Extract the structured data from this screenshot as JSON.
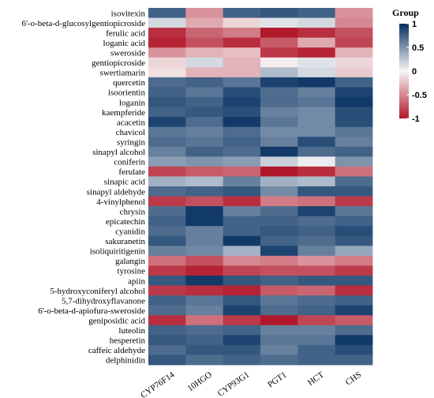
{
  "chart_data": {
    "type": "heatmap",
    "title": "",
    "xlabel": "",
    "ylabel": "",
    "legend": {
      "title": "Group",
      "placement": "top-right",
      "range": [
        -1,
        1
      ],
      "ticks": [
        {
          "value": 1,
          "label": "1"
        },
        {
          "value": 0.5,
          "label": "0.5"
        },
        {
          "value": 0,
          "label": "0"
        },
        {
          "value": -0.5,
          "label": "-0.5"
        },
        {
          "value": -1,
          "label": "-1"
        }
      ]
    },
    "colors": {
      "low": "#b2182b",
      "mid": "#f7f7f7",
      "high": "#053061"
    },
    "columns": [
      "CYP76F14",
      "10HGO",
      "CYP93G1",
      "PGT1",
      "HCT",
      "CHS"
    ],
    "rows": [
      "isovitexin",
      "6'-o-beta-d-glucosylgentiopicroside",
      "ferulic acid",
      "loganic acid",
      "sweroside",
      "gentiopicroside",
      "swertiamarin",
      "quercetin",
      "isoorientin",
      "loganin",
      "kaempferide",
      "acacetin",
      "chavicol",
      "syringin",
      "sinapyl alcohol",
      "coniferin",
      "ferulate",
      "sinapic acid",
      "sinapyl aldehyde",
      "4-vinylphenol",
      "chrysin",
      "epicatechin",
      "cyanidin",
      "sakuranetin",
      "isoliquiritigenin",
      "galangin",
      "tyrosine",
      "apiin",
      "5-hydroxyconiferyl alcohol",
      "5,7-dihydroxyflavanone",
      "6'-o-beta-d-apiofura-sweroside",
      "geniposidic acid",
      "luteolin",
      "hesperetin",
      "caffeic aldehyde",
      "delphinidin"
    ],
    "values": [
      [
        0.75,
        -0.45,
        0.75,
        0.8,
        0.75,
        -0.45
      ],
      [
        0.15,
        -0.35,
        -0.15,
        0.1,
        0.15,
        -0.5
      ],
      [
        -0.9,
        -0.65,
        -0.55,
        -1.0,
        -0.9,
        -0.75
      ],
      [
        -0.95,
        -0.75,
        -0.9,
        -0.7,
        -0.35,
        -0.8
      ],
      [
        -0.45,
        -0.3,
        -0.25,
        -0.85,
        -0.95,
        -0.3
      ],
      [
        -0.15,
        0.15,
        -0.3,
        -0.05,
        0.1,
        -0.15
      ],
      [
        -0.1,
        -0.3,
        -0.3,
        0.3,
        0.15,
        -0.2
      ],
      [
        0.7,
        0.75,
        0.65,
        0.9,
        0.95,
        0.75
      ],
      [
        0.75,
        0.65,
        0.85,
        0.7,
        0.6,
        0.9
      ],
      [
        0.8,
        0.75,
        0.9,
        0.7,
        0.65,
        0.95
      ],
      [
        0.75,
        0.8,
        0.85,
        0.6,
        0.55,
        0.85
      ],
      [
        0.9,
        0.7,
        0.95,
        0.65,
        0.55,
        0.85
      ],
      [
        0.65,
        0.6,
        0.7,
        0.55,
        0.55,
        0.65
      ],
      [
        0.7,
        0.65,
        0.75,
        0.6,
        0.85,
        0.6
      ],
      [
        0.6,
        0.75,
        0.7,
        0.95,
        0.7,
        0.75
      ],
      [
        0.45,
        0.5,
        0.45,
        0.2,
        0.05,
        0.5
      ],
      [
        -0.8,
        -0.7,
        -0.65,
        -1.0,
        -0.9,
        -0.6
      ],
      [
        0.35,
        0.3,
        0.6,
        0.35,
        0.3,
        0.7
      ],
      [
        0.7,
        0.75,
        0.8,
        0.55,
        0.8,
        0.8
      ],
      [
        -0.85,
        -0.75,
        -0.9,
        -0.55,
        -0.6,
        -0.85
      ],
      [
        0.7,
        0.95,
        0.6,
        0.7,
        0.9,
        0.65
      ],
      [
        0.75,
        0.95,
        0.75,
        0.75,
        0.7,
        0.75
      ],
      [
        0.7,
        0.6,
        0.75,
        0.8,
        0.75,
        0.85
      ],
      [
        0.8,
        0.6,
        0.95,
        0.75,
        0.7,
        0.8
      ],
      [
        0.6,
        0.55,
        0.35,
        0.9,
        0.6,
        0.4
      ],
      [
        -0.6,
        -0.75,
        -0.5,
        -0.55,
        -0.45,
        -0.55
      ],
      [
        -0.85,
        -0.95,
        -0.8,
        -0.75,
        -0.75,
        -0.85
      ],
      [
        0.8,
        0.95,
        0.8,
        0.75,
        0.8,
        0.8
      ],
      [
        -0.85,
        -0.9,
        -0.95,
        -0.7,
        -0.65,
        -0.9
      ],
      [
        0.75,
        0.65,
        0.8,
        0.65,
        0.7,
        0.75
      ],
      [
        0.7,
        0.6,
        0.9,
        0.7,
        0.75,
        0.9
      ],
      [
        -0.9,
        -0.6,
        -0.85,
        -1.0,
        -0.8,
        -0.7
      ],
      [
        0.75,
        0.7,
        0.75,
        0.6,
        0.6,
        0.7
      ],
      [
        0.8,
        0.75,
        0.9,
        0.65,
        0.65,
        0.95
      ],
      [
        0.7,
        0.8,
        0.8,
        0.6,
        0.75,
        0.85
      ],
      [
        0.8,
        0.7,
        0.75,
        0.7,
        0.75,
        0.75
      ]
    ]
  }
}
